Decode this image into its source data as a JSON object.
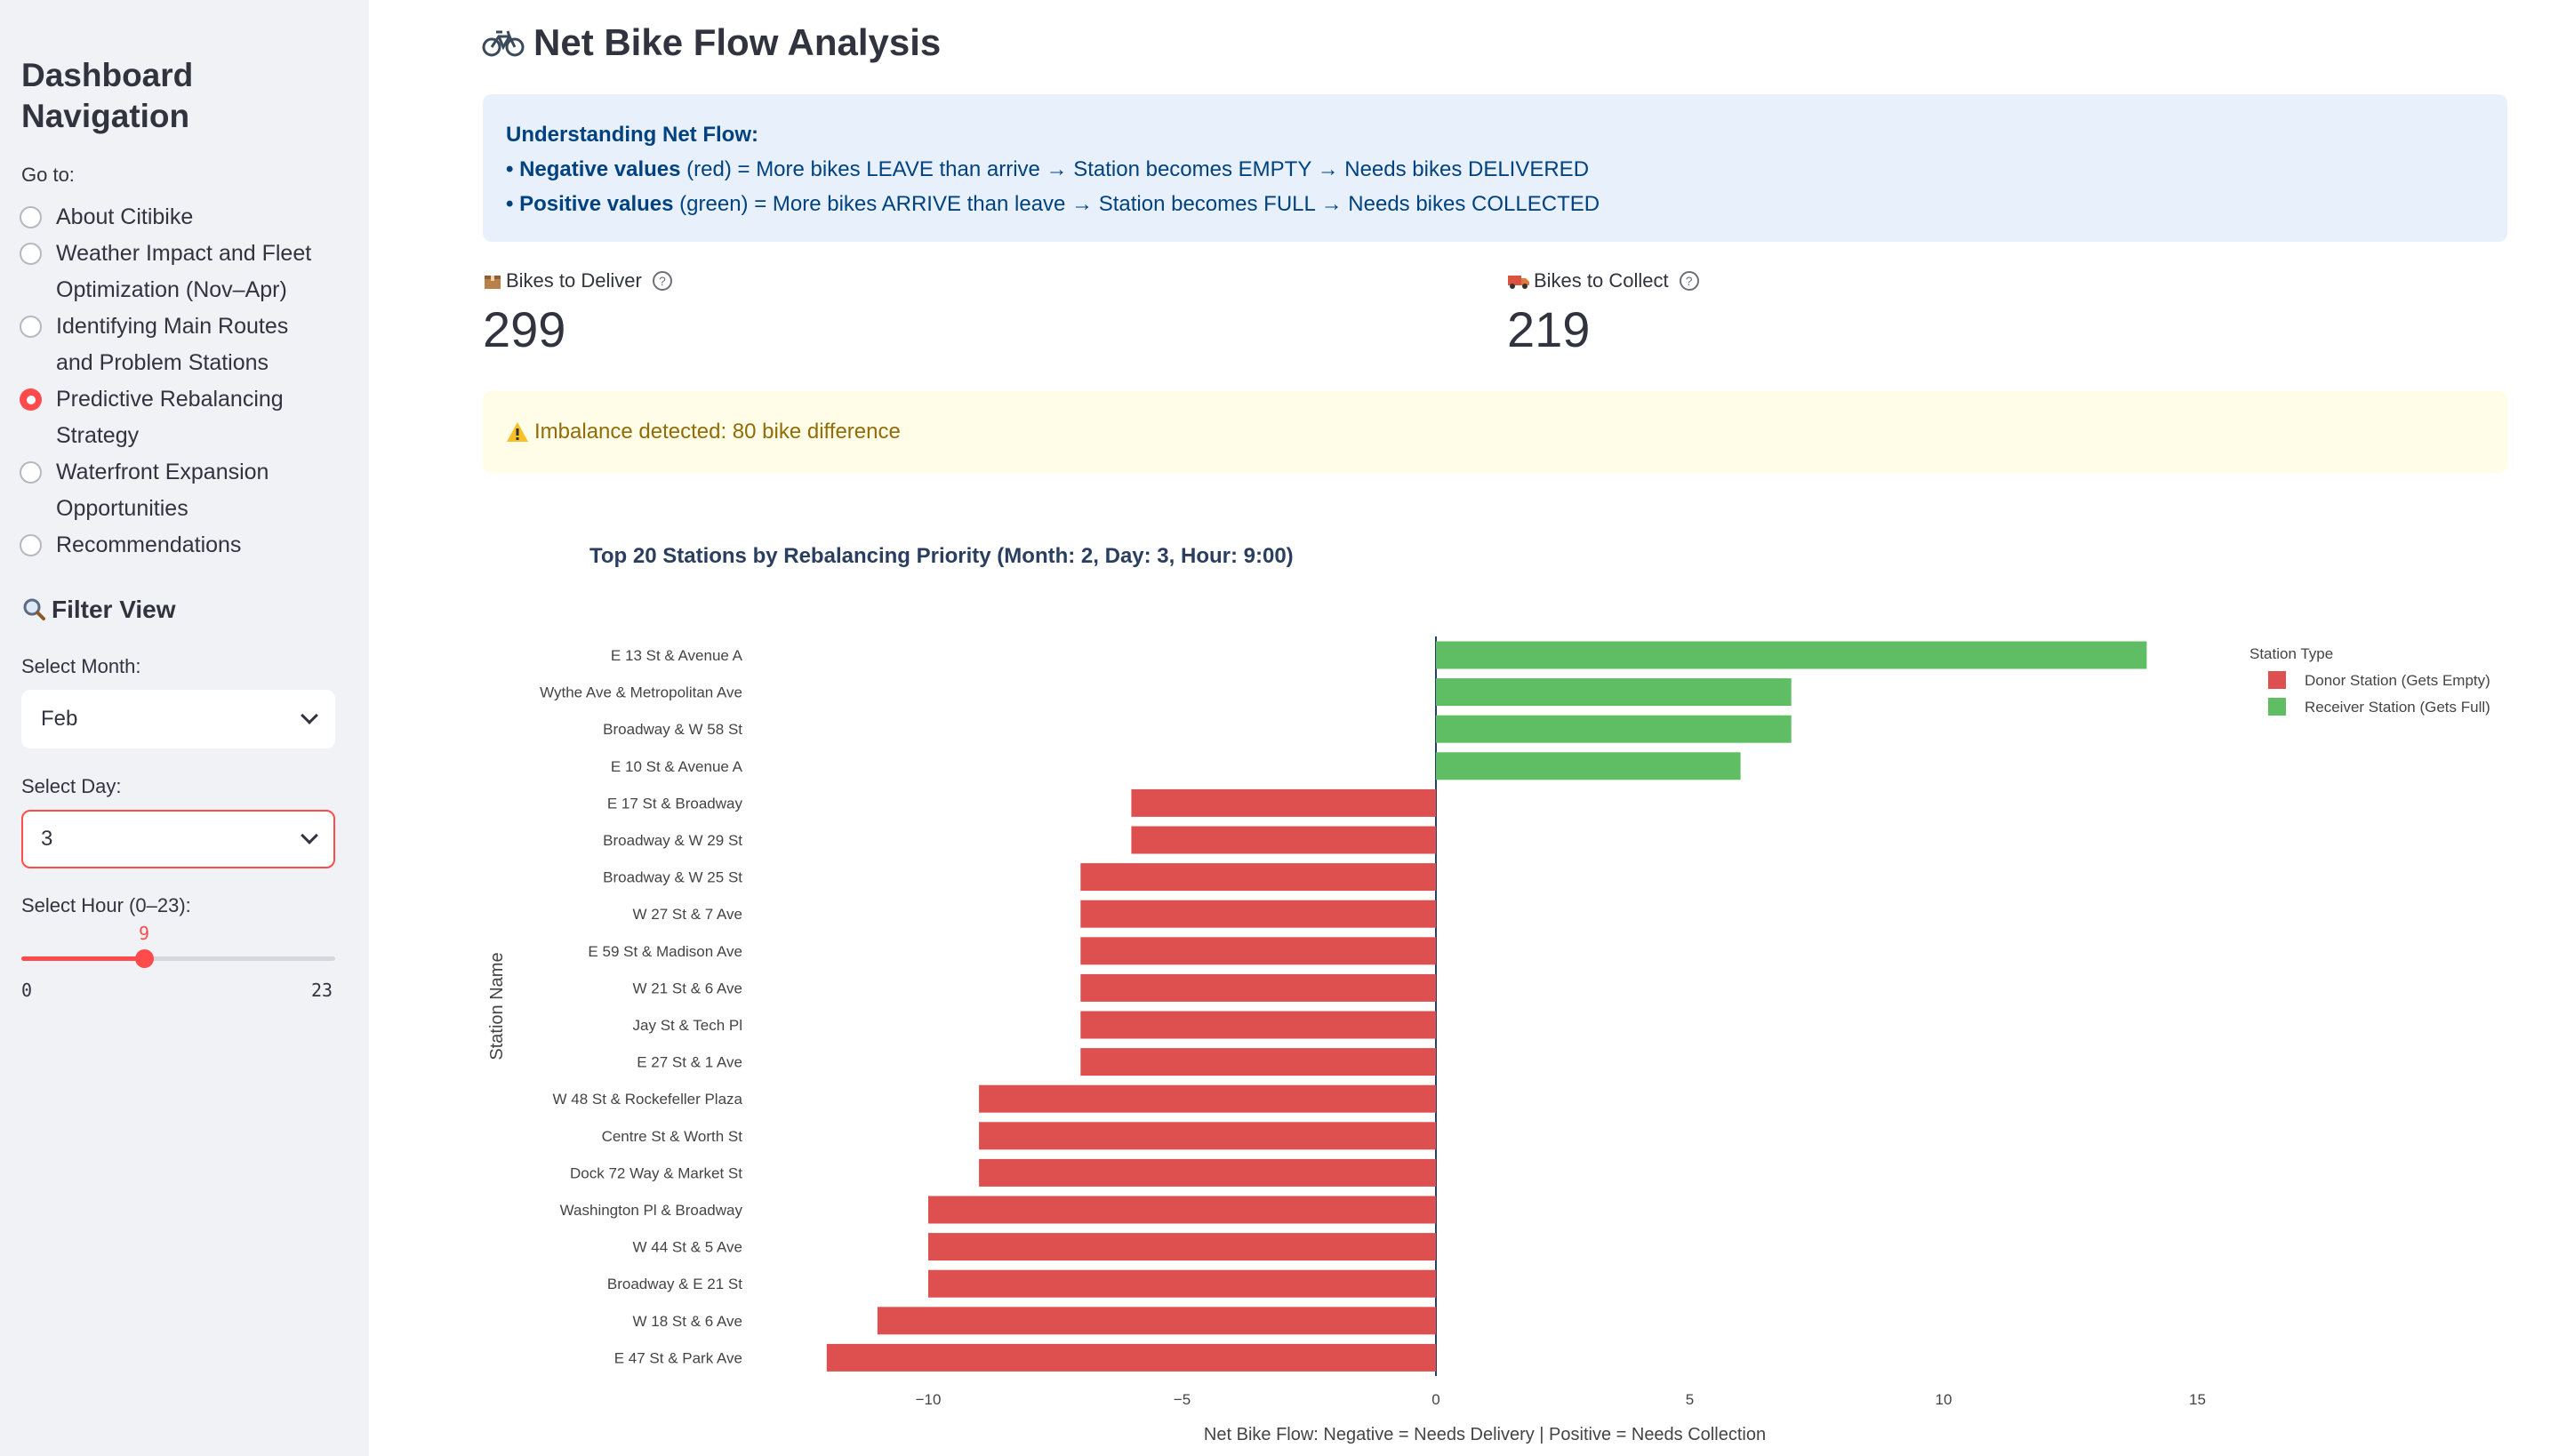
{
  "sidebar": {
    "title_line1": "Dashboard",
    "title_line2": "Navigation",
    "goto_label": "Go to:",
    "nav": [
      {
        "line1": "About Citibike",
        "line2": "",
        "selected": false
      },
      {
        "line1": "Weather Impact and Fleet",
        "line2": "Optimization (Nov–Apr)",
        "selected": false
      },
      {
        "line1": "Identifying Main Routes",
        "line2": "and Problem Stations",
        "selected": false
      },
      {
        "line1": "Predictive Rebalancing",
        "line2": "Strategy",
        "selected": true
      },
      {
        "line1": "Waterfront Expansion",
        "line2": "Opportunities",
        "selected": false
      },
      {
        "line1": "Recommendations",
        "line2": "",
        "selected": false
      }
    ],
    "filter_title": "Filter View",
    "month_label": "Select Month:",
    "month_value": "Feb",
    "day_label": "Select Day:",
    "day_value": "3",
    "hour_label": "Select Hour (0–23):",
    "hour_value": "9",
    "hour_min": "0",
    "hour_max": "23",
    "hour_fraction": 0.391
  },
  "main": {
    "title": "Net Bike Flow Analysis",
    "title_icon": "bicycle-icon",
    "info": {
      "heading": "Understanding Net Flow:",
      "neg_bold": "• Negative values",
      "neg_rest": " (red) = More bikes LEAVE than arrive → Station becomes EMPTY → Needs bikes DELIVERED",
      "pos_bold": "• Positive values",
      "pos_rest": " (green) = More bikes ARRIVE than leave → Station becomes FULL → Needs bikes COLLECTED"
    },
    "metric_deliver": {
      "label": "Bikes to Deliver",
      "value": "299",
      "icon": "package-icon"
    },
    "metric_collect": {
      "label": "Bikes to Collect",
      "value": "219",
      "icon": "truck-icon"
    },
    "warning": "Imbalance detected: 80 bike difference"
  },
  "chart_data": {
    "type": "bar",
    "orientation": "horizontal",
    "title": "Top 20 Stations by Rebalancing Priority (Month: 2, Day: 3, Hour: 9:00)",
    "xlabel": "Net Bike Flow: Negative = Needs Delivery | Positive = Needs Collection",
    "ylabel": "Station Name",
    "xlim": [
      -12.8,
      17
    ],
    "xticks": [
      "−10",
      "−5",
      "0",
      "5",
      "10",
      "15"
    ],
    "xtick_values": [
      -10,
      -5,
      0,
      5,
      10,
      15
    ],
    "legend_title": "Station Type",
    "legend_position": "top-right",
    "colors": {
      "donor": "#de4f4f",
      "receiver": "#5fbe63"
    },
    "series": [
      {
        "name": "Donor Station (Gets Empty)",
        "color": "#de4f4f"
      },
      {
        "name": "Receiver Station (Gets Full)",
        "color": "#5fbe63"
      }
    ],
    "categories": [
      "E 13 St & Avenue A",
      "Wythe Ave & Metropolitan Ave",
      "Broadway & W 58 St",
      "E 10 St & Avenue A",
      "E 17 St & Broadway",
      "Broadway & W 29 St",
      "Broadway & W 25 St",
      "W 27 St & 7 Ave",
      "E 59 St & Madison Ave",
      "W 21 St & 6 Ave",
      "Jay St & Tech Pl",
      "E 27 St & 1 Ave",
      "W 48 St & Rockefeller Plaza",
      "Centre St & Worth St",
      "Dock 72 Way & Market St",
      "Washington Pl & Broadway",
      "W 44 St & 5 Ave",
      "Broadway & E 21 St",
      "W 18 St & 6 Ave",
      "E 47 St & Park Ave"
    ],
    "values": [
      14,
      7,
      7,
      6,
      -6,
      -6,
      -7,
      -7,
      -7,
      -7,
      -7,
      -7,
      -9,
      -9,
      -9,
      -10,
      -10,
      -10,
      -11,
      -12
    ]
  }
}
